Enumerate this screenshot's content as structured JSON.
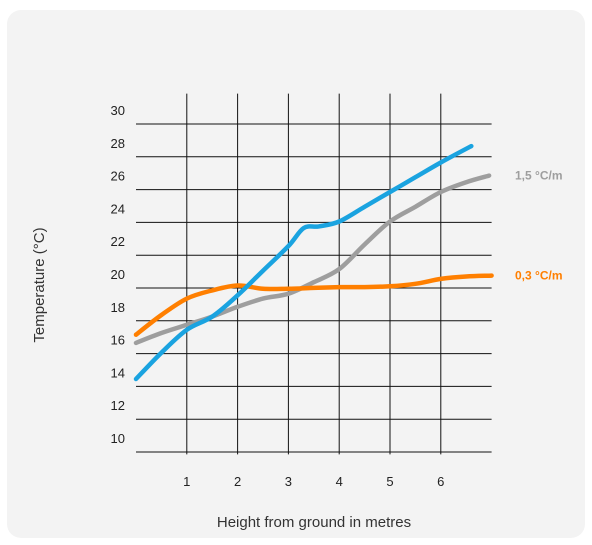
{
  "chart_data": {
    "type": "line",
    "xlabel": "Height from ground in metres",
    "ylabel": "Temperature (°C)",
    "xlim": [
      0,
      7
    ],
    "ylim": [
      9,
      31
    ],
    "x_ticks": [
      "1",
      "2",
      "3",
      "4",
      "5",
      "6"
    ],
    "y_ticks": [
      "10",
      "12",
      "14",
      "16",
      "18",
      "20",
      "22",
      "24",
      "26",
      "28",
      "30"
    ],
    "grid": true,
    "series": [
      {
        "name": "",
        "color": "#1aa3e0",
        "x": [
          0,
          0.5,
          1,
          1.5,
          2,
          2.5,
          3,
          3.3,
          3.6,
          4,
          4.5,
          5,
          5.5,
          6,
          6.6
        ],
        "y": [
          13.6,
          15.2,
          16.6,
          17.4,
          18.7,
          20.2,
          21.7,
          22.8,
          22.9,
          23.2,
          24.1,
          25,
          25.9,
          26.8,
          27.8
        ]
      },
      {
        "name": "1,5 °C/m",
        "color": "#9e9e9e",
        "x": [
          0,
          0.5,
          1,
          1.5,
          2,
          2.5,
          3,
          3.5,
          4,
          4.5,
          5,
          5.5,
          6,
          6.5,
          6.95
        ],
        "y": [
          15.8,
          16.4,
          16.9,
          17.4,
          18,
          18.5,
          18.8,
          19.5,
          20.3,
          21.8,
          23.2,
          24.1,
          25,
          25.6,
          26
        ]
      },
      {
        "name": "0,3 °C/m",
        "color": "#ff7f00",
        "x": [
          0,
          0.5,
          1,
          1.5,
          2,
          2.5,
          3,
          3.5,
          4,
          4.5,
          5,
          5.5,
          6,
          6.5,
          7
        ],
        "y": [
          16.3,
          17.5,
          18.5,
          19,
          19.3,
          19.1,
          19.1,
          19.15,
          19.2,
          19.2,
          19.25,
          19.4,
          19.7,
          19.85,
          19.9
        ]
      }
    ]
  }
}
